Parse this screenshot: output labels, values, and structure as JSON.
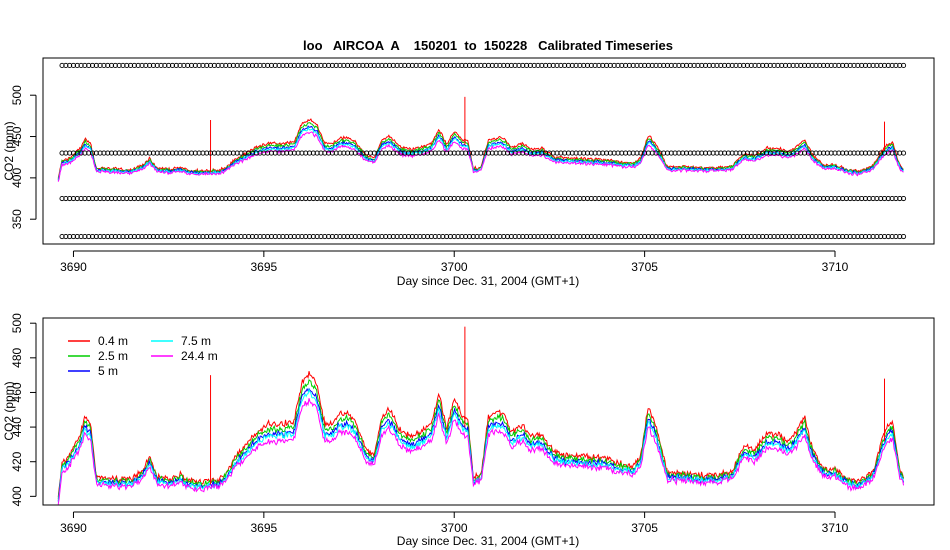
{
  "chart_data": [
    {
      "type": "line",
      "title": "loo   AIRCOA  A    150201  to  150228   Calibrated Timeseries",
      "xlabel": "Day since Dec. 31, 2004 (GMT+1)",
      "ylabel": "CO2 (ppm)",
      "xlim": [
        3689.2,
        3712.6
      ],
      "ylim": [
        320,
        545
      ],
      "x_ticks": [
        3690,
        3695,
        3700,
        3705,
        3710
      ],
      "x_tick_labels": [
        "3690",
        "3695",
        "3700",
        "3705",
        "3710"
      ],
      "y_ticks": [
        350,
        400,
        450,
        500
      ],
      "y_tick_labels": [
        "350",
        "400",
        "450",
        "500"
      ],
      "calibration_markers": {
        "marker": "open-circle",
        "color": "#000000",
        "x_range": [
          3689.7,
          3711.8
        ],
        "levels": [
          536,
          430,
          375,
          329
        ]
      },
      "series_colors": [
        "#ff0000",
        "#00cd00",
        "#0000ff",
        "#00ffff",
        "#ff00ff"
      ],
      "series_offsets": [
        4,
        2,
        0,
        -1,
        -3
      ],
      "baseline_points": [
        [
          3689.6,
          398
        ],
        [
          3689.7,
          418
        ],
        [
          3689.9,
          420
        ],
        [
          3690.2,
          432
        ],
        [
          3690.3,
          441
        ],
        [
          3690.45,
          436
        ],
        [
          3690.6,
          409
        ],
        [
          3690.9,
          409
        ],
        [
          3691.2,
          408
        ],
        [
          3691.5,
          407
        ],
        [
          3691.8,
          412
        ],
        [
          3692.0,
          420
        ],
        [
          3692.2,
          409
        ],
        [
          3692.6,
          408
        ],
        [
          3692.8,
          410
        ],
        [
          3693.0,
          407
        ],
        [
          3693.3,
          406
        ],
        [
          3693.6,
          407
        ],
        [
          3693.8,
          407
        ],
        [
          3694.0,
          410
        ],
        [
          3694.2,
          418
        ],
        [
          3694.5,
          425
        ],
        [
          3694.8,
          432
        ],
        [
          3695.1,
          436
        ],
        [
          3695.5,
          436
        ],
        [
          3695.8,
          438
        ],
        [
          3696.0,
          458
        ],
        [
          3696.2,
          462
        ],
        [
          3696.4,
          456
        ],
        [
          3696.6,
          436
        ],
        [
          3696.8,
          436
        ],
        [
          3697.0,
          442
        ],
        [
          3697.2,
          442
        ],
        [
          3697.4,
          438
        ],
        [
          3697.7,
          423
        ],
        [
          3697.9,
          420
        ],
        [
          3698.1,
          440
        ],
        [
          3698.3,
          444
        ],
        [
          3698.6,
          432
        ],
        [
          3698.9,
          430
        ],
        [
          3699.1,
          432
        ],
        [
          3699.4,
          436
        ],
        [
          3699.6,
          452
        ],
        [
          3699.8,
          434
        ],
        [
          3700.0,
          450
        ],
        [
          3700.2,
          440
        ],
        [
          3700.35,
          440
        ],
        [
          3700.5,
          409
        ],
        [
          3700.7,
          410
        ],
        [
          3700.9,
          440
        ],
        [
          3701.1,
          442
        ],
        [
          3701.3,
          442
        ],
        [
          3701.5,
          432
        ],
        [
          3701.8,
          436
        ],
        [
          3702.0,
          430
        ],
        [
          3702.3,
          431
        ],
        [
          3702.6,
          422
        ],
        [
          3703.0,
          420
        ],
        [
          3703.3,
          420
        ],
        [
          3703.6,
          419
        ],
        [
          3703.9,
          419
        ],
        [
          3704.1,
          418
        ],
        [
          3704.4,
          416
        ],
        [
          3704.7,
          415
        ],
        [
          3704.9,
          420
        ],
        [
          3705.1,
          446
        ],
        [
          3705.3,
          435
        ],
        [
          3705.6,
          411
        ],
        [
          3706.0,
          411
        ],
        [
          3706.4,
          410
        ],
        [
          3706.8,
          410
        ],
        [
          3707.0,
          410
        ],
        [
          3707.3,
          412
        ],
        [
          3707.6,
          425
        ],
        [
          3707.9,
          423
        ],
        [
          3708.2,
          431
        ],
        [
          3708.5,
          431
        ],
        [
          3708.8,
          427
        ],
        [
          3709.0,
          433
        ],
        [
          3709.2,
          440
        ],
        [
          3709.4,
          424
        ],
        [
          3709.7,
          413
        ],
        [
          3710.0,
          414
        ],
        [
          3710.3,
          408
        ],
        [
          3710.6,
          406
        ],
        [
          3711.0,
          412
        ],
        [
          3711.3,
          432
        ],
        [
          3711.5,
          438
        ],
        [
          3711.7,
          413
        ],
        [
          3711.8,
          409
        ]
      ],
      "spikes": [
        [
          3693.6,
          470
        ],
        [
          3700.28,
          498
        ],
        [
          3711.3,
          468
        ]
      ]
    },
    {
      "type": "line",
      "title": "",
      "xlabel": "Day since Dec. 31, 2004 (GMT+1)",
      "ylabel": "CO2 (ppm)",
      "xlim": [
        3689.2,
        3712.6
      ],
      "ylim": [
        395,
        503
      ],
      "x_ticks": [
        3690,
        3695,
        3700,
        3705,
        3710
      ],
      "x_tick_labels": [
        "3690",
        "3695",
        "3700",
        "3705",
        "3710"
      ],
      "y_ticks": [
        400,
        420,
        440,
        460,
        480,
        500
      ],
      "y_tick_labels": [
        "400",
        "420",
        "440",
        "460",
        "480",
        "500"
      ],
      "legend": {
        "placement": "top-left",
        "entries": [
          {
            "label": "0.4 m",
            "color": "#ff0000"
          },
          {
            "label": "2.5 m",
            "color": "#00cd00"
          },
          {
            "label": "5 m",
            "color": "#0000ff"
          },
          {
            "label": "7.5 m",
            "color": "#00ffff"
          },
          {
            "label": "24.4 m",
            "color": "#ff00ff"
          }
        ]
      },
      "series_colors": [
        "#ff0000",
        "#00cd00",
        "#0000ff",
        "#00ffff",
        "#ff00ff"
      ],
      "series_offsets": [
        4,
        2,
        0,
        -1,
        -3
      ],
      "baseline_points": [
        [
          3689.6,
          398
        ],
        [
          3689.7,
          416
        ],
        [
          3689.9,
          420
        ],
        [
          3690.2,
          432
        ],
        [
          3690.3,
          440
        ],
        [
          3690.45,
          436
        ],
        [
          3690.6,
          409
        ],
        [
          3690.9,
          408
        ],
        [
          3691.2,
          408
        ],
        [
          3691.5,
          407
        ],
        [
          3691.8,
          412
        ],
        [
          3692.0,
          420
        ],
        [
          3692.2,
          409
        ],
        [
          3692.6,
          408
        ],
        [
          3692.8,
          410
        ],
        [
          3693.0,
          407
        ],
        [
          3693.3,
          406
        ],
        [
          3693.6,
          407
        ],
        [
          3693.8,
          407
        ],
        [
          3694.0,
          410
        ],
        [
          3694.2,
          418
        ],
        [
          3694.5,
          425
        ],
        [
          3694.8,
          432
        ],
        [
          3695.1,
          436
        ],
        [
          3695.5,
          436
        ],
        [
          3695.8,
          438
        ],
        [
          3696.0,
          458
        ],
        [
          3696.2,
          462
        ],
        [
          3696.4,
          456
        ],
        [
          3696.6,
          436
        ],
        [
          3696.8,
          436
        ],
        [
          3697.0,
          442
        ],
        [
          3697.2,
          442
        ],
        [
          3697.4,
          438
        ],
        [
          3697.7,
          423
        ],
        [
          3697.9,
          420
        ],
        [
          3698.1,
          440
        ],
        [
          3698.3,
          444
        ],
        [
          3698.6,
          432
        ],
        [
          3698.9,
          430
        ],
        [
          3699.1,
          432
        ],
        [
          3699.4,
          436
        ],
        [
          3699.6,
          452
        ],
        [
          3699.8,
          434
        ],
        [
          3700.0,
          450
        ],
        [
          3700.2,
          440
        ],
        [
          3700.35,
          440
        ],
        [
          3700.5,
          409
        ],
        [
          3700.7,
          410
        ],
        [
          3700.9,
          440
        ],
        [
          3701.1,
          442
        ],
        [
          3701.3,
          442
        ],
        [
          3701.5,
          432
        ],
        [
          3701.8,
          436
        ],
        [
          3702.0,
          430
        ],
        [
          3702.3,
          431
        ],
        [
          3702.6,
          422
        ],
        [
          3703.0,
          420
        ],
        [
          3703.3,
          420
        ],
        [
          3703.6,
          419
        ],
        [
          3703.9,
          419
        ],
        [
          3704.1,
          418
        ],
        [
          3704.4,
          416
        ],
        [
          3704.7,
          415
        ],
        [
          3704.9,
          420
        ],
        [
          3705.1,
          446
        ],
        [
          3705.3,
          435
        ],
        [
          3705.6,
          411
        ],
        [
          3706.0,
          411
        ],
        [
          3706.4,
          410
        ],
        [
          3706.8,
          410
        ],
        [
          3707.0,
          410
        ],
        [
          3707.3,
          412
        ],
        [
          3707.6,
          425
        ],
        [
          3707.9,
          423
        ],
        [
          3708.2,
          431
        ],
        [
          3708.5,
          431
        ],
        [
          3708.8,
          427
        ],
        [
          3709.0,
          433
        ],
        [
          3709.2,
          440
        ],
        [
          3709.4,
          424
        ],
        [
          3709.7,
          413
        ],
        [
          3710.0,
          414
        ],
        [
          3710.3,
          408
        ],
        [
          3710.6,
          406
        ],
        [
          3711.0,
          412
        ],
        [
          3711.3,
          432
        ],
        [
          3711.5,
          438
        ],
        [
          3711.7,
          413
        ],
        [
          3711.8,
          409
        ]
      ],
      "spikes": [
        [
          3693.6,
          470
        ],
        [
          3700.28,
          498
        ],
        [
          3711.3,
          468
        ]
      ]
    }
  ]
}
